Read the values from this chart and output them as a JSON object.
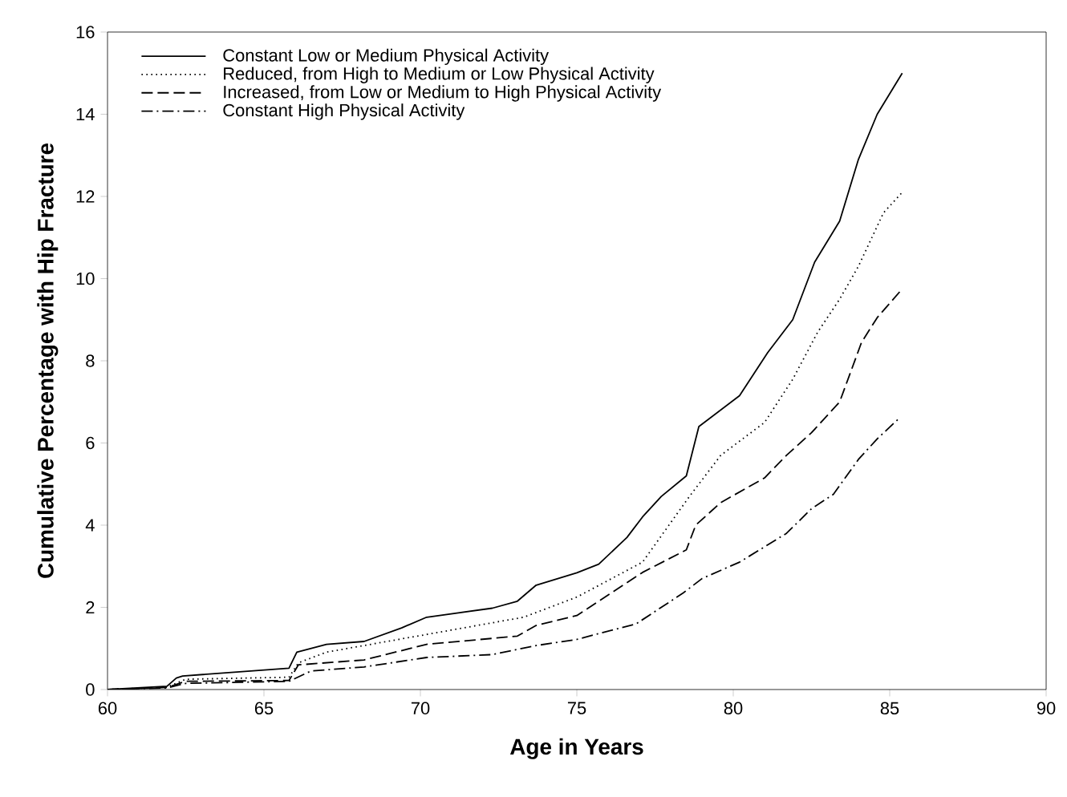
{
  "chart_data": {
    "type": "line",
    "xlabel": "Age in Years",
    "ylabel": "Cumulative Percentage with Hip Fracture",
    "xlim": [
      60,
      90
    ],
    "ylim": [
      0,
      16
    ],
    "xticks": [
      60,
      65,
      70,
      75,
      80,
      85,
      90
    ],
    "yticks": [
      0,
      2,
      4,
      6,
      8,
      10,
      12,
      14,
      16
    ],
    "grid": false,
    "legend": "top left",
    "marker": "none",
    "series": [
      {
        "name": "Constant Low or Medium Physical Activity",
        "color": "#000000",
        "line_style": "solid",
        "x": [
          60,
          61.9,
          62.2,
          62.4,
          65.8,
          66.05,
          67.0,
          68.2,
          69.4,
          70.2,
          72.3,
          73.1,
          73.7,
          75.0,
          75.7,
          76.6,
          77.1,
          77.7,
          78.5,
          78.9,
          80.2,
          81.1,
          81.9,
          82.6,
          83.4,
          84.0,
          84.6,
          85.4
        ],
        "values": [
          0,
          0.08,
          0.28,
          0.33,
          0.52,
          0.91,
          1.1,
          1.17,
          1.5,
          1.76,
          1.98,
          2.15,
          2.54,
          2.84,
          3.05,
          3.7,
          4.2,
          4.7,
          5.2,
          6.4,
          7.15,
          8.2,
          9.0,
          10.4,
          11.4,
          12.9,
          14.0,
          15.0
        ]
      },
      {
        "name": "Reduced, from High to Medium or Low Physical Activity",
        "color": "#000000",
        "line_style": "dotted",
        "x": [
          60,
          61.9,
          62.5,
          65.8,
          66.1,
          67.0,
          69.9,
          73.3,
          75.0,
          77.1,
          78.6,
          79.6,
          81.0,
          81.9,
          82.7,
          83.4,
          84.0,
          84.8,
          85.4
        ],
        "values": [
          0,
          0.06,
          0.25,
          0.3,
          0.65,
          0.91,
          1.3,
          1.76,
          2.25,
          3.1,
          4.7,
          5.7,
          6.5,
          7.55,
          8.7,
          9.5,
          10.3,
          11.6,
          12.1
        ]
      },
      {
        "name": "Increased, from Low or Medium to High Physical Activity",
        "color": "#000000",
        "line_style": "dashed",
        "x": [
          60,
          61.9,
          62.5,
          65.8,
          66.1,
          68.2,
          70.2,
          73.1,
          73.7,
          75.0,
          77.1,
          78.5,
          78.8,
          79.6,
          81.0,
          81.7,
          82.5,
          83.4,
          84.1,
          84.6,
          85.4
        ],
        "values": [
          0,
          0.05,
          0.2,
          0.22,
          0.6,
          0.72,
          1.1,
          1.3,
          1.56,
          1.8,
          2.85,
          3.4,
          4.0,
          4.55,
          5.15,
          5.7,
          6.25,
          7.0,
          8.45,
          9.05,
          9.75
        ]
      },
      {
        "name": "Constant High Physical Activity",
        "color": "#000000",
        "line_style": "dashdot",
        "x": [
          60,
          61.9,
          62.5,
          65.8,
          66.5,
          68.2,
          70.2,
          72.3,
          73.7,
          75.0,
          76.9,
          78.4,
          79.0,
          80.2,
          81.7,
          82.5,
          83.2,
          84.0,
          84.6,
          85.3
        ],
        "values": [
          0,
          0.04,
          0.15,
          0.2,
          0.45,
          0.55,
          0.78,
          0.85,
          1.07,
          1.22,
          1.6,
          2.35,
          2.7,
          3.1,
          3.8,
          4.4,
          4.75,
          5.6,
          6.1,
          6.6
        ]
      }
    ]
  }
}
